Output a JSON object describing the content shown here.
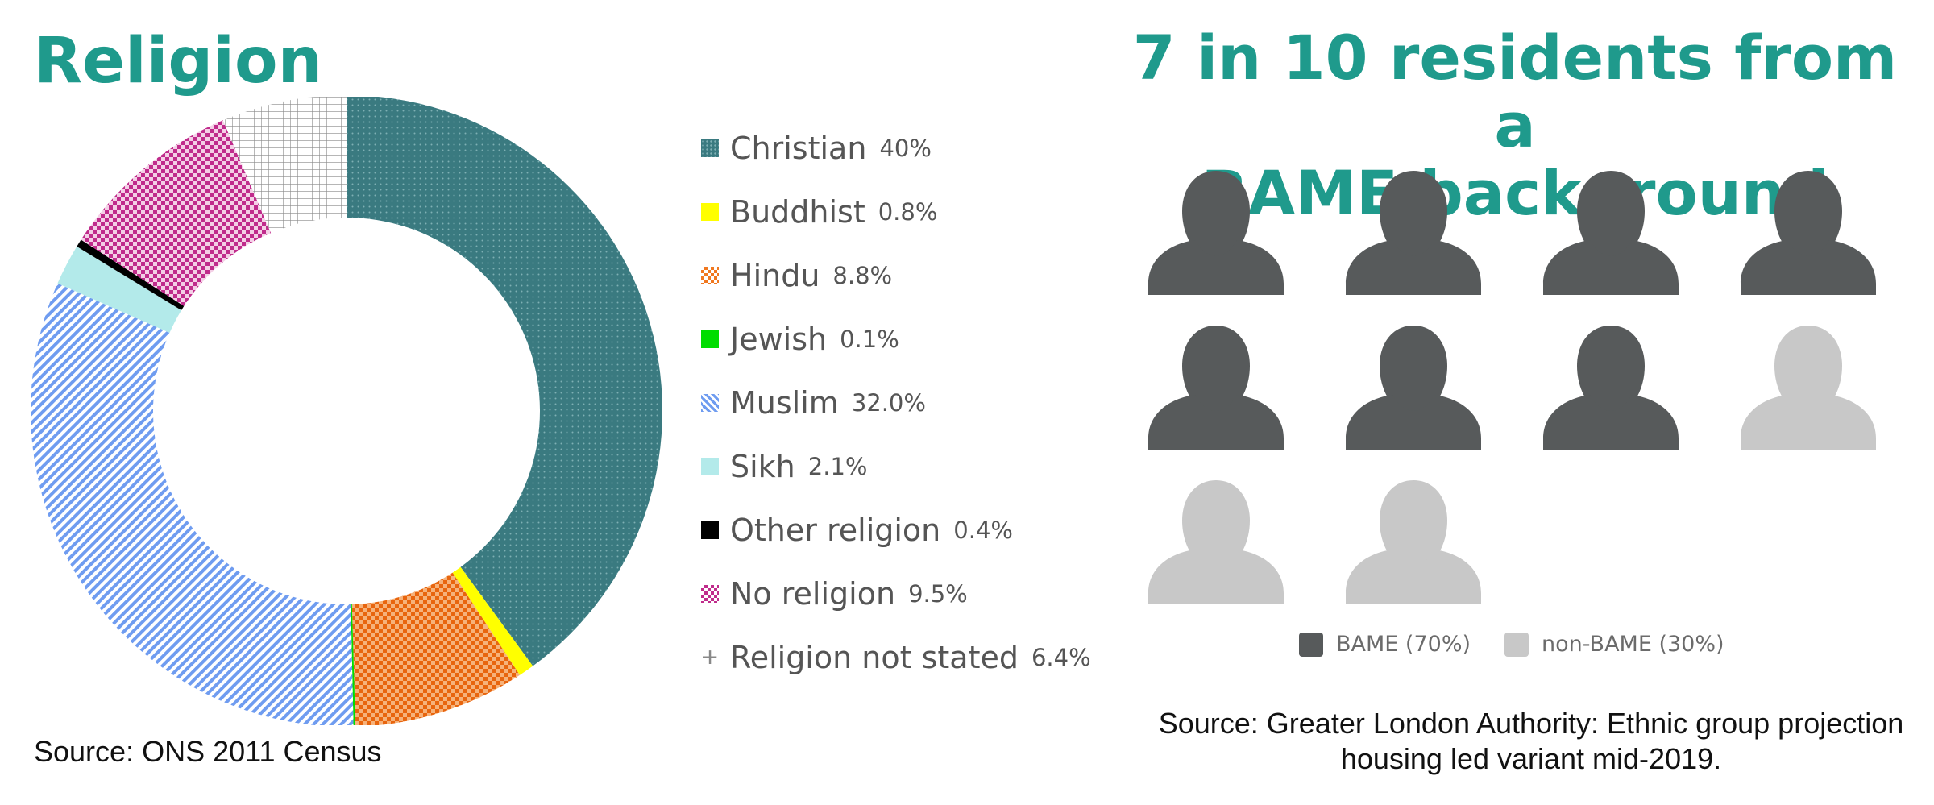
{
  "religion": {
    "title": "Religion",
    "source": "Source: ONS 2011 Census",
    "chart_data": {
      "type": "pie",
      "variant": "donut",
      "legend_position": "right",
      "slices": [
        {
          "name": "Christian",
          "value": 40,
          "label": "40%",
          "color": "#3a7a80",
          "pattern": "dots"
        },
        {
          "name": "Buddhist",
          "value": 0.8,
          "label": "0.8%",
          "color": "#ffff00",
          "pattern": "solid"
        },
        {
          "name": "Hindu",
          "value": 8.8,
          "label": "8.8%",
          "color": "#f07820",
          "pattern": "checker"
        },
        {
          "name": "Jewish",
          "value": 0.1,
          "label": "0.1%",
          "color": "#00dd00",
          "pattern": "solid"
        },
        {
          "name": "Muslim",
          "value": 32.0,
          "label": "32.0%",
          "color": "#6f9cf0",
          "pattern": "diagonal"
        },
        {
          "name": "Sikh",
          "value": 2.1,
          "label": "2.1%",
          "color": "#b3eaea",
          "pattern": "solid"
        },
        {
          "name": "Other religion",
          "value": 0.4,
          "label": "0.4%",
          "color": "#000000",
          "pattern": "solid"
        },
        {
          "name": "No religion",
          "value": 9.5,
          "label": "9.5%",
          "color": "#c02c8c",
          "pattern": "checker"
        },
        {
          "name": "Religion not stated",
          "value": 6.4,
          "label": "6.4%",
          "color": "#888888",
          "pattern": "grid"
        }
      ]
    }
  },
  "bame": {
    "title_line1": "7 in 10 residents from a",
    "title_line2": "BAME background",
    "source_line1": "Source: Greater London Authority: Ethnic group projection",
    "source_line2": "housing led variant  mid-2019.",
    "chart_data": {
      "type": "pictogram",
      "total": 10,
      "series": [
        {
          "name": "BAME",
          "count": 7,
          "label": "BAME (70%)",
          "color": "#575a5b"
        },
        {
          "name": "non-BAME",
          "count": 3,
          "label": "non-BAME (30%)",
          "color": "#c8c8c8"
        }
      ]
    }
  }
}
